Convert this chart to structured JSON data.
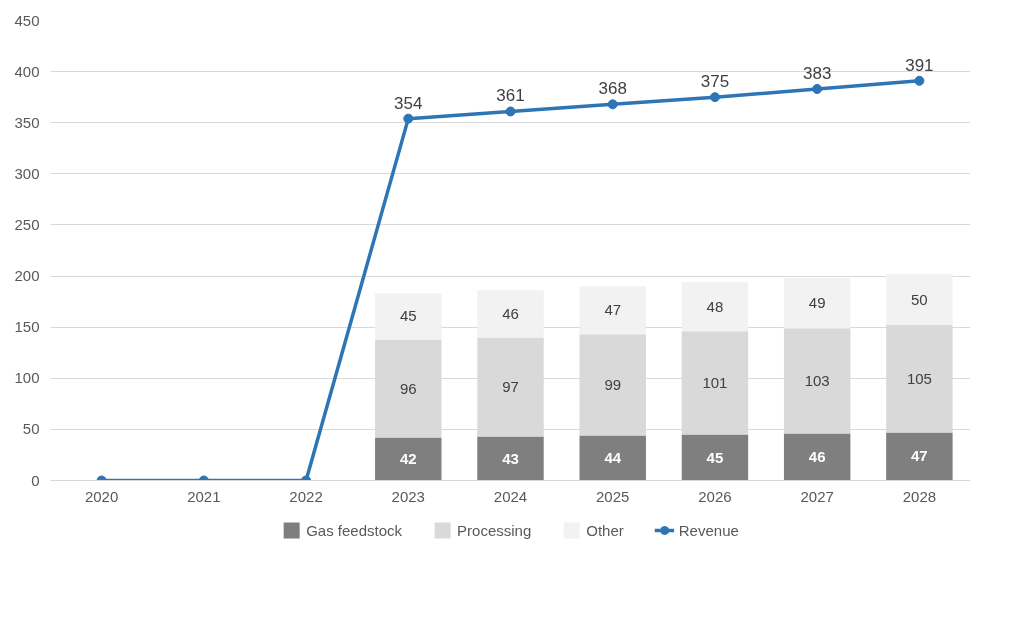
{
  "chart_data": {
    "type": "bar",
    "stacked": true,
    "categories": [
      "2020",
      "2021",
      "2022",
      "2023",
      "2024",
      "2025",
      "2026",
      "2027",
      "2028"
    ],
    "ylim": [
      0,
      450
    ],
    "yticks": [
      0,
      50,
      100,
      150,
      200,
      250,
      300,
      350,
      400,
      450
    ],
    "grid": "y",
    "legend": "bottom",
    "series": [
      {
        "name": "Gas feedstock",
        "color": "#7f7f7f",
        "values": [
          null,
          null,
          null,
          42,
          43,
          44,
          45,
          46,
          47
        ],
        "value_labels": [
          null,
          null,
          null,
          "42",
          "43",
          "44",
          "45",
          "46",
          "47"
        ]
      },
      {
        "name": "Processing",
        "color": "#d9d9d9",
        "values": [
          null,
          null,
          null,
          96,
          97,
          99,
          101,
          103,
          105
        ],
        "value_labels": [
          null,
          null,
          null,
          "96",
          "97",
          "99",
          "101",
          "103",
          "105"
        ]
      },
      {
        "name": "Other",
        "color": "#f2f2f2",
        "values": [
          null,
          null,
          null,
          45,
          46,
          47,
          48,
          49,
          50
        ],
        "value_labels": [
          null,
          null,
          null,
          "45",
          "46",
          "47",
          "48",
          "49",
          "50"
        ]
      },
      {
        "name": "Revenue",
        "type": "line",
        "marker": "circle",
        "color": "#2e75b6",
        "values": [
          0,
          0,
          0,
          354,
          361,
          368,
          375,
          383,
          391
        ],
        "value_labels": [
          null,
          null,
          null,
          "354",
          "361",
          "368",
          "375",
          "383",
          "391"
        ]
      }
    ]
  }
}
